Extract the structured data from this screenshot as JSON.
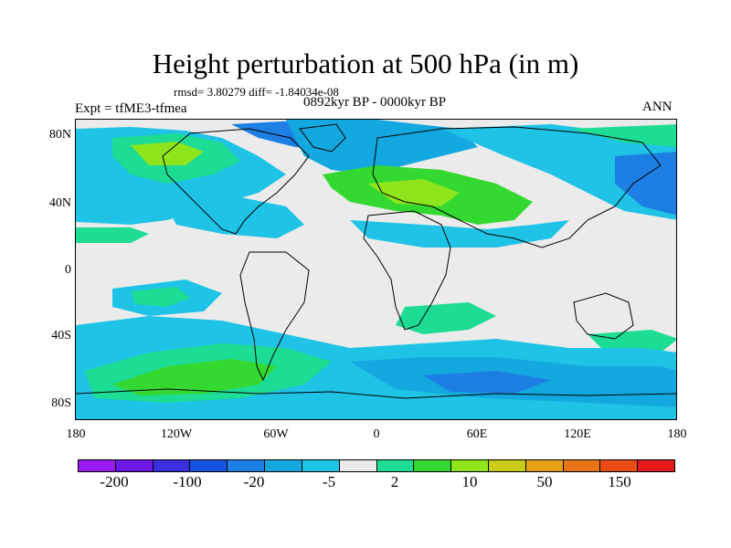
{
  "header": {
    "title": "Height perturbation at 500 hPa (in m)",
    "stats": "rmsd= 3.80279 diff= -1.84034e-08",
    "expt": "Expt = tfME3-tfmea",
    "period": "0892kyr BP - 0000kyr BP",
    "season": "ANN"
  },
  "axes": {
    "lat_labels": [
      "80N",
      "40N",
      "0",
      "40S",
      "80S"
    ],
    "lon_labels": [
      "180",
      "120W",
      "60W",
      "0",
      "60E",
      "120E",
      "180"
    ]
  },
  "colorbar": {
    "colors": [
      "#9b1aef",
      "#6e18e8",
      "#3b2ee0",
      "#1653e0",
      "#1d7fe3",
      "#13a8e0",
      "#1ec3e5",
      "#ebebeb",
      "#1ddc93",
      "#33d931",
      "#8ee51c",
      "#c8cc18",
      "#e6a318",
      "#e87515",
      "#ea4c15",
      "#e5181a"
    ],
    "labels": [
      "-200",
      "-100",
      "-20",
      "-5",
      "2",
      "10",
      "50",
      "150"
    ]
  },
  "colors": {
    "neutral": "#ebebeb",
    "light_blue": "#1ec3e5",
    "mid_blue": "#13a8e0",
    "blue": "#1d7fe3",
    "dark_blue": "#1653e0",
    "green": "#1ddc93",
    "bright_green": "#33d931",
    "yellow_green": "#8ee51c"
  }
}
